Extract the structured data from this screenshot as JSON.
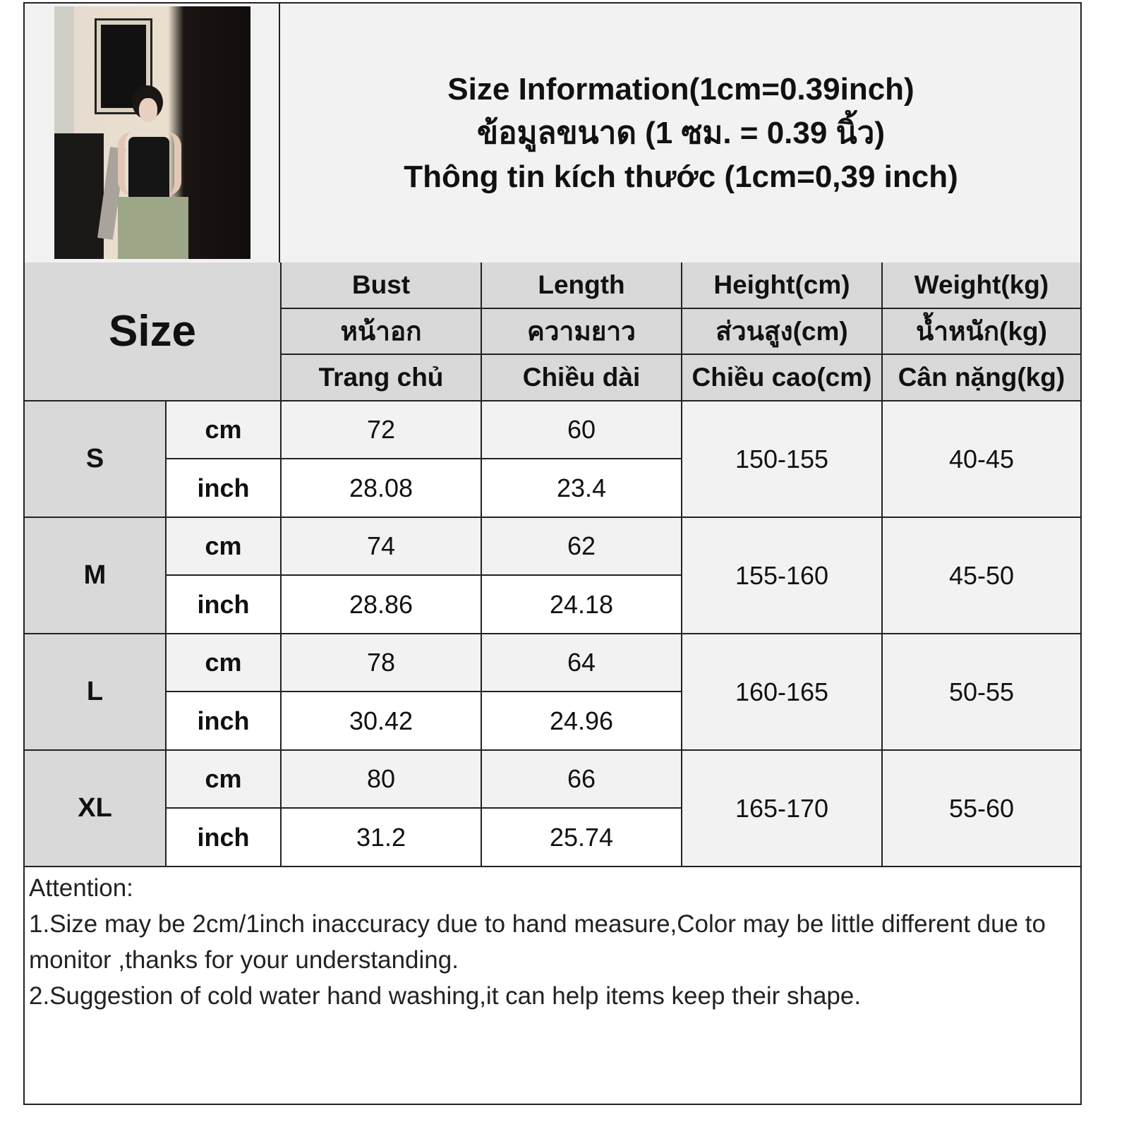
{
  "header": {
    "title_lines": [
      "Size Information(1cm=0.39inch)",
      "ข้อมูลขนาด (1 ซม. = 0.39 นิ้ว)",
      "Thông tin kích thước (1cm=0,39 inch)"
    ]
  },
  "photo": {
    "icon": "product-photo-woman-black-cowl-neck-camisole"
  },
  "table": {
    "size_label": "Size",
    "columns": [
      {
        "en": "Bust",
        "th": "หน้าอก",
        "vi": "Trang chủ"
      },
      {
        "en": "Length",
        "th": "ความยาว",
        "vi": "Chiều dài"
      },
      {
        "en": "Height(cm)",
        "th": "ส่วนสูง(cm)",
        "vi": "Chiều cao(cm)"
      },
      {
        "en": "Weight(kg)",
        "th": "น้ำหนัก(kg)",
        "vi": "Cân nặng(kg)"
      }
    ],
    "unit_cm": "cm",
    "unit_inch": "inch",
    "rows": [
      {
        "size": "S",
        "bust_cm": "72",
        "length_cm": "60",
        "bust_inch": "28.08",
        "length_inch": "23.4",
        "height": "150-155",
        "weight": "40-45"
      },
      {
        "size": "M",
        "bust_cm": "74",
        "length_cm": "62",
        "bust_inch": "28.86",
        "length_inch": "24.18",
        "height": "155-160",
        "weight": "45-50"
      },
      {
        "size": "L",
        "bust_cm": "78",
        "length_cm": "64",
        "bust_inch": "30.42",
        "length_inch": "24.96",
        "height": "160-165",
        "weight": "50-55"
      },
      {
        "size": "XL",
        "bust_cm": "80",
        "length_cm": "66",
        "bust_inch": "31.2",
        "length_inch": "25.74",
        "height": "165-170",
        "weight": "55-60"
      }
    ]
  },
  "attention": {
    "heading": "Attention:",
    "note1": "1.Size may be 2cm/1inch inaccuracy due to hand measure,Color may be little different due to monitor ,thanks for your understanding.",
    "note2": "2.Suggestion of cold water hand washing,it can help items keep their shape."
  },
  "colors": {
    "header_gray": "#d9d9d9",
    "light_gray": "#f2f2f2",
    "border": "#222222"
  }
}
